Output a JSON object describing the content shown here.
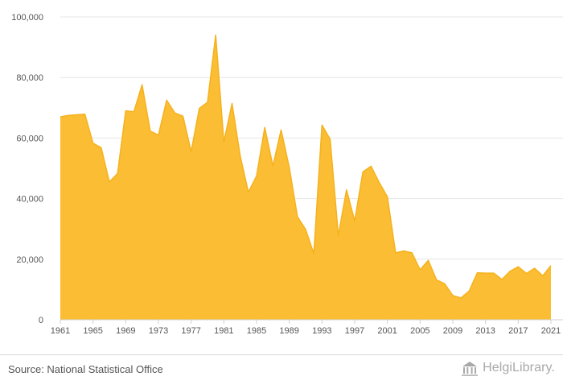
{
  "chart_data": {
    "type": "area",
    "title": "",
    "xlabel": "",
    "ylabel": "",
    "x": [
      1961,
      1962,
      1963,
      1964,
      1965,
      1966,
      1967,
      1968,
      1969,
      1970,
      1971,
      1972,
      1973,
      1974,
      1975,
      1976,
      1977,
      1978,
      1979,
      1980,
      1981,
      1982,
      1983,
      1984,
      1985,
      1986,
      1987,
      1988,
      1989,
      1990,
      1991,
      1992,
      1993,
      1994,
      1995,
      1996,
      1997,
      1998,
      1999,
      2000,
      2001,
      2002,
      2003,
      2004,
      2005,
      2006,
      2007,
      2008,
      2009,
      2010,
      2011,
      2012,
      2013,
      2014,
      2015,
      2016,
      2017,
      2018,
      2019,
      2020,
      2021
    ],
    "values": [
      67000,
      67500,
      67700,
      67900,
      58300,
      56800,
      45500,
      48300,
      69000,
      68700,
      77600,
      62300,
      61000,
      72500,
      68300,
      67200,
      55500,
      69800,
      71800,
      94000,
      58700,
      71400,
      54100,
      42100,
      47500,
      63500,
      50800,
      62700,
      50300,
      34000,
      29800,
      21800,
      64300,
      59600,
      27800,
      42900,
      32600,
      48800,
      50700,
      45300,
      40600,
      22100,
      22700,
      22100,
      16500,
      19600,
      13200,
      11900,
      8000,
      7200,
      9500,
      15500,
      15400,
      15400,
      13300,
      16000,
      17500,
      15300,
      17000,
      14500,
      17900
    ],
    "ylim": [
      0,
      100000
    ],
    "yticks": [
      0,
      20000,
      40000,
      60000,
      80000,
      100000
    ],
    "ytick_labels": [
      "0",
      "20,000",
      "40,000",
      "60,000",
      "80,000",
      "100,000"
    ],
    "xticks": [
      1961,
      1965,
      1969,
      1973,
      1977,
      1981,
      1985,
      1989,
      1993,
      1997,
      2001,
      2005,
      2009,
      2013,
      2017,
      2021
    ],
    "xtick_labels": [
      "1961",
      "1965",
      "1969",
      "1973",
      "1977",
      "1981",
      "1985",
      "1989",
      "1993",
      "1997",
      "2001",
      "2005",
      "2009",
      "2013",
      "2017",
      "2021"
    ],
    "grid": true,
    "legend": "none",
    "fill_color": "#fbbd33",
    "line_color": "#f5b21e"
  },
  "footer": {
    "source": "Source: National Statistical Office",
    "brand": "HelgiLibrary."
  },
  "brand_icon": "library-building-icon"
}
